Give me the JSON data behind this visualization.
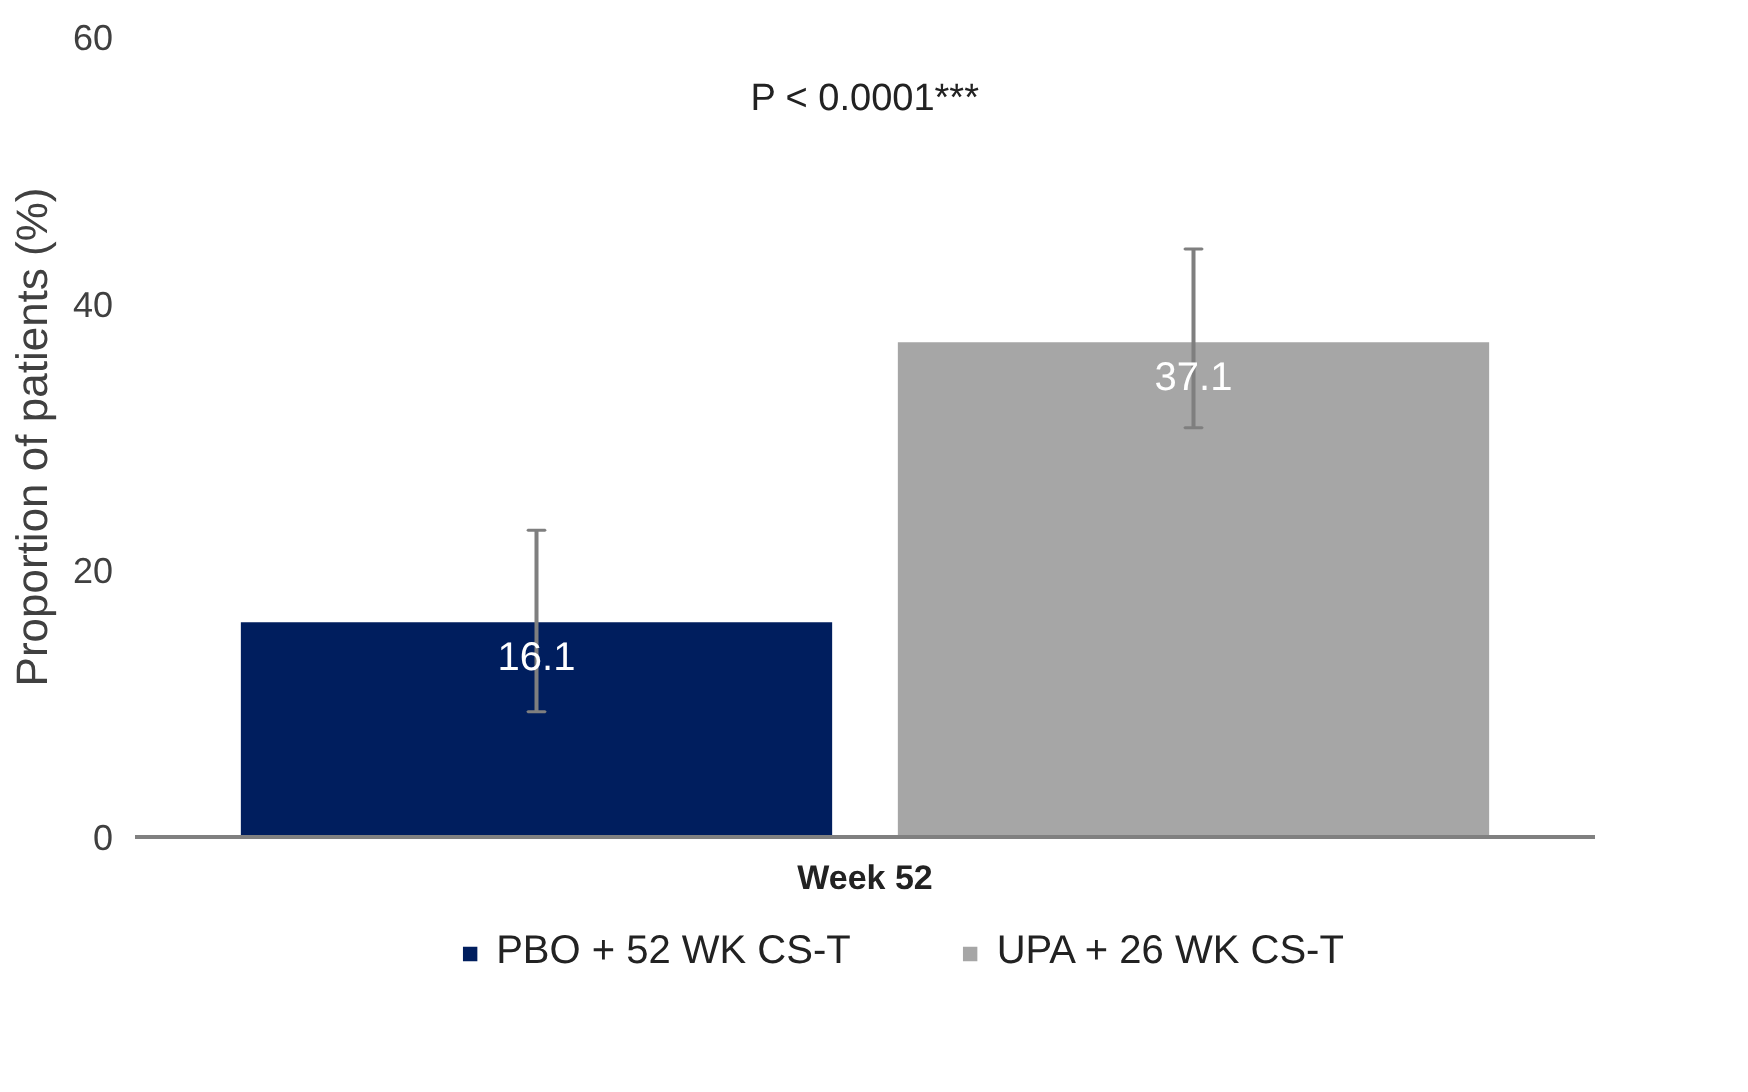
{
  "chart_data": {
    "type": "bar",
    "categories": [
      "Week 52"
    ],
    "ylabel": "Proportion of patients (%)",
    "ylim": [
      0,
      60
    ],
    "yticks": [
      0,
      20,
      40,
      60
    ],
    "grid": false,
    "legend": "bottom",
    "data_labels": true,
    "annotations": [
      "P < 0.0001***"
    ],
    "series": [
      {
        "name": "PBO + 52 WK CS-T",
        "color": "#001e5e",
        "values": [
          16.1
        ],
        "errors": [
          [
            9.4,
            23.0
          ]
        ]
      },
      {
        "name": "UPA + 26 WK CS-T",
        "color": "#a6a6a6",
        "values": [
          37.1
        ],
        "errors": [
          [
            30.7,
            44.1
          ]
        ]
      }
    ]
  }
}
